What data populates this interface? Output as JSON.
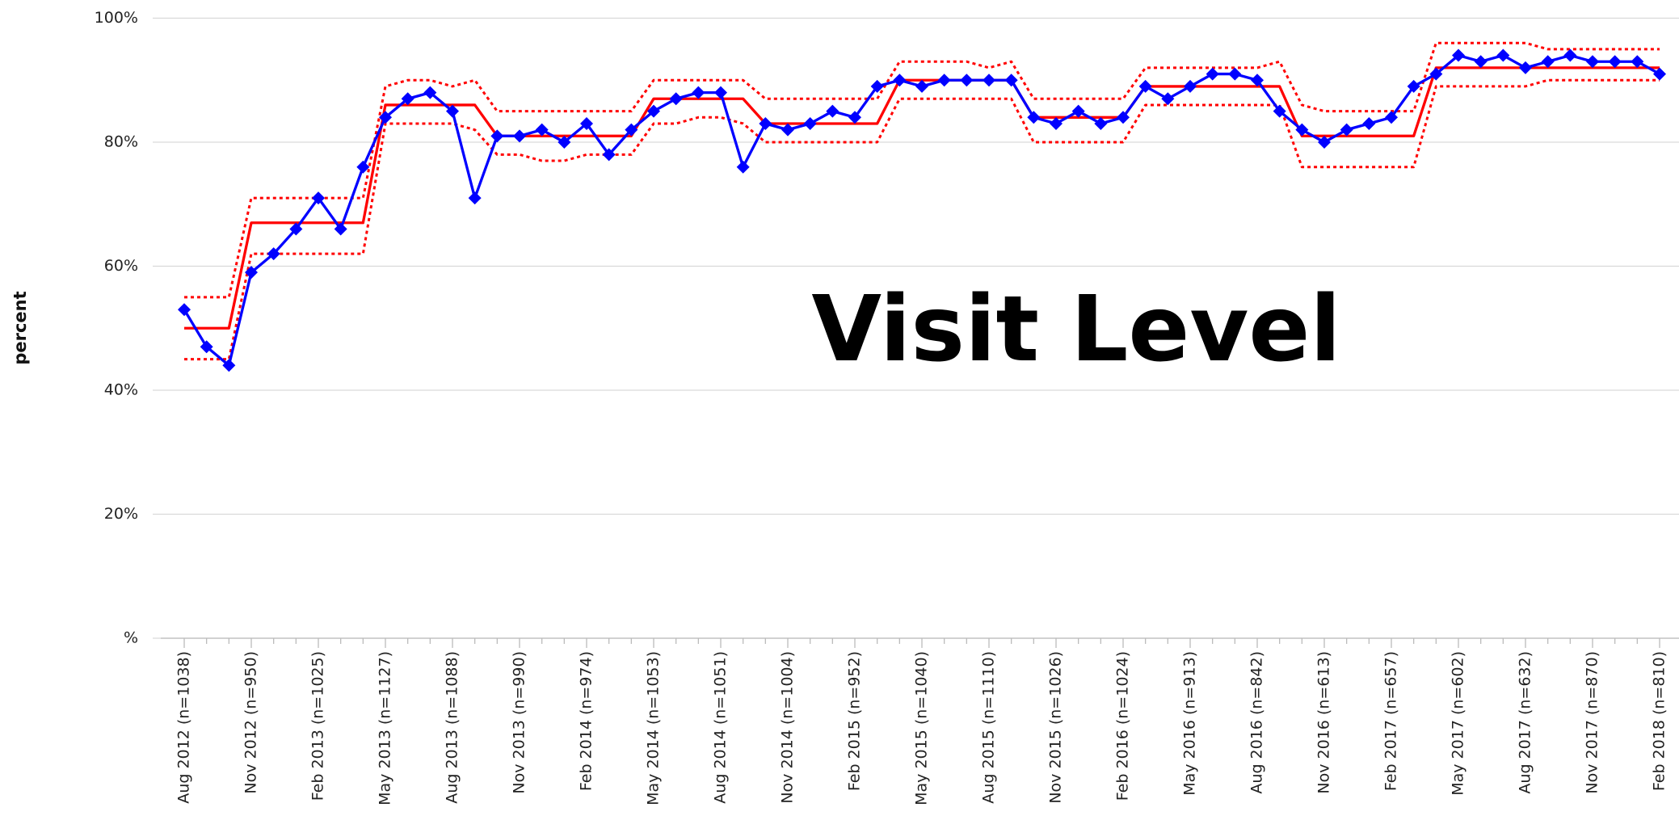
{
  "chart_data": {
    "type": "line",
    "annotations": [
      "Visit Level"
    ],
    "y_label": "percent",
    "categories": [
      "Aug 2012 (n=1038)",
      null,
      null,
      "Nov 2012 (n=950)",
      null,
      null,
      "Feb 2013 (n=1025)",
      null,
      null,
      "May 2013 (n=1127)",
      null,
      null,
      "Aug 2013 (n=1088)",
      null,
      null,
      "Nov 2013 (n=990)",
      null,
      null,
      "Feb 2014 (n=974)",
      null,
      null,
      "May 2014 (n=1053)",
      null,
      null,
      "Aug 2014 (n=1051)",
      null,
      null,
      "Nov 2014 (n=1004)",
      null,
      null,
      "Feb 2015 (n=952)",
      null,
      null,
      "May 2015 (n=1040)",
      null,
      null,
      "Aug 2015 (n=1110)",
      null,
      null,
      "Nov 2015 (n=1026)",
      null,
      null,
      "Feb 2016 (n=1024)",
      null,
      null,
      "May 2016 (n=913)",
      null,
      null,
      "Aug 2016 (n=842)",
      null,
      null,
      "Nov 2016 (n=613)",
      null,
      null,
      "Feb 2017 (n=657)",
      null,
      null,
      "May 2017 (n=602)",
      null,
      null,
      "Aug 2017 (n=632)",
      null,
      null,
      "Nov 2017 (n=870)",
      null,
      null,
      "Feb 2018 (n=810)"
    ],
    "series": [
      {
        "color": "#ff0000",
        "dash": true,
        "values": [
          55,
          55,
          55,
          71,
          71,
          71,
          71,
          71,
          71,
          89,
          90,
          90,
          89,
          90,
          85,
          85,
          85,
          85,
          85,
          85,
          85,
          90,
          90,
          90,
          90,
          90,
          87,
          87,
          87,
          87,
          87,
          87,
          93,
          93,
          93,
          93,
          92,
          93,
          87,
          87,
          87,
          87,
          87,
          92,
          92,
          92,
          92,
          92,
          92,
          93,
          86,
          85,
          85,
          85,
          85,
          85,
          96,
          96,
          96,
          96,
          96,
          95,
          95,
          95,
          95,
          95,
          95
        ]
      },
      {
        "color": "#ff0000",
        "dash": true,
        "values": [
          45,
          45,
          45,
          62,
          62,
          62,
          62,
          62,
          62,
          83,
          83,
          83,
          83,
          82,
          78,
          78,
          77,
          77,
          78,
          78,
          78,
          83,
          83,
          84,
          84,
          83,
          80,
          80,
          80,
          80,
          80,
          80,
          87,
          87,
          87,
          87,
          87,
          87,
          80,
          80,
          80,
          80,
          80,
          86,
          86,
          86,
          86,
          86,
          86,
          86,
          76,
          76,
          76,
          76,
          76,
          76,
          89,
          89,
          89,
          89,
          89,
          90,
          90,
          90,
          90,
          90,
          90
        ]
      },
      {
        "color": "#ff0000",
        "dash": false,
        "values": [
          50,
          50,
          50,
          67,
          67,
          67,
          67,
          67,
          67,
          86,
          86,
          86,
          86,
          86,
          81,
          81,
          81,
          81,
          81,
          81,
          81,
          87,
          87,
          87,
          87,
          87,
          83,
          83,
          83,
          83,
          83,
          83,
          90,
          90,
          90,
          90,
          90,
          90,
          84,
          84,
          84,
          84,
          84,
          89,
          89,
          89,
          89,
          89,
          89,
          89,
          81,
          81,
          81,
          81,
          81,
          81,
          92,
          92,
          92,
          92,
          92,
          92,
          92,
          92,
          92,
          92,
          92
        ]
      },
      {
        "color": "#0000ff",
        "dash": false,
        "markers": true,
        "values": [
          53,
          47,
          44,
          59,
          62,
          66,
          71,
          66,
          76,
          84,
          87,
          88,
          85,
          71,
          81,
          81,
          82,
          80,
          83,
          78,
          82,
          85,
          87,
          88,
          88,
          76,
          83,
          82,
          83,
          85,
          84,
          89,
          90,
          89,
          90,
          90,
          90,
          90,
          84,
          83,
          85,
          83,
          84,
          89,
          87,
          89,
          91,
          91,
          90,
          85,
          82,
          80,
          82,
          83,
          84,
          89,
          91,
          94,
          93,
          94,
          92,
          93,
          94,
          93,
          93,
          93,
          91
        ]
      }
    ],
    "ylim": [
      0,
      100
    ],
    "yticks": [
      {
        "value": 0,
        "label": "%"
      },
      {
        "value": 20,
        "label": "20%"
      },
      {
        "value": 40,
        "label": "40%"
      },
      {
        "value": 60,
        "label": "60%"
      },
      {
        "value": 80,
        "label": "80%"
      },
      {
        "value": 100,
        "label": "100%"
      }
    ],
    "grid": true
  }
}
